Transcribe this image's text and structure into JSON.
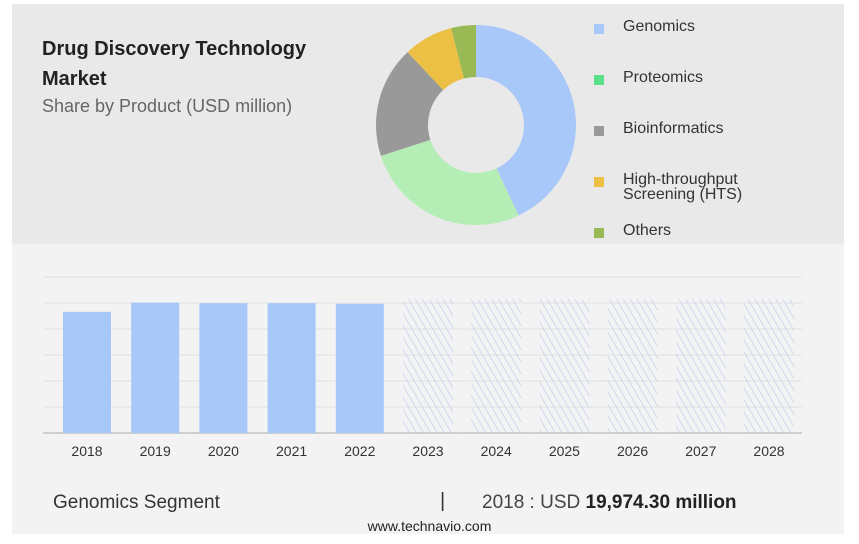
{
  "chart_data": [
    {
      "type": "pie",
      "title": "Drug Discovery Technology Market",
      "subtitle": "Share by Product (USD million)",
      "donut": true,
      "slices": [
        {
          "label": "Genomics",
          "value": 43,
          "color": "#a8c8fa"
        },
        {
          "label": "Proteomics",
          "value": 27,
          "color": "#b4eeb4"
        },
        {
          "label": "Bioinformatics",
          "value": 18,
          "color": "#999999"
        },
        {
          "label": "High-throughput Screening (HTS)",
          "value": 8,
          "color": "#ecc045"
        },
        {
          "label": "Others",
          "value": 4,
          "color": "#98b954"
        }
      ],
      "legend_colors": [
        "#a8c8fa",
        "#5be08a",
        "#999999",
        "#ecc045",
        "#98b954"
      ],
      "legend": "right"
    },
    {
      "type": "bar",
      "categories": [
        "2018",
        "2019",
        "2020",
        "2021",
        "2022",
        "2023",
        "2024",
        "2025",
        "2026",
        "2027",
        "2028"
      ],
      "values": [
        19974.3,
        21500,
        21400,
        21400,
        21300,
        null,
        null,
        null,
        null,
        null,
        null
      ],
      "forecast": [
        false,
        false,
        false,
        false,
        false,
        true,
        true,
        true,
        true,
        true,
        true
      ],
      "ylim": [
        0,
        30000
      ],
      "grid": true,
      "bar_color": "#a8c8fa"
    }
  ],
  "footer": {
    "segment": "Genomics Segment",
    "separator": "|",
    "year_label": "2018 : USD",
    "value": "19,974.30 million",
    "site": "www.technavio.com"
  }
}
